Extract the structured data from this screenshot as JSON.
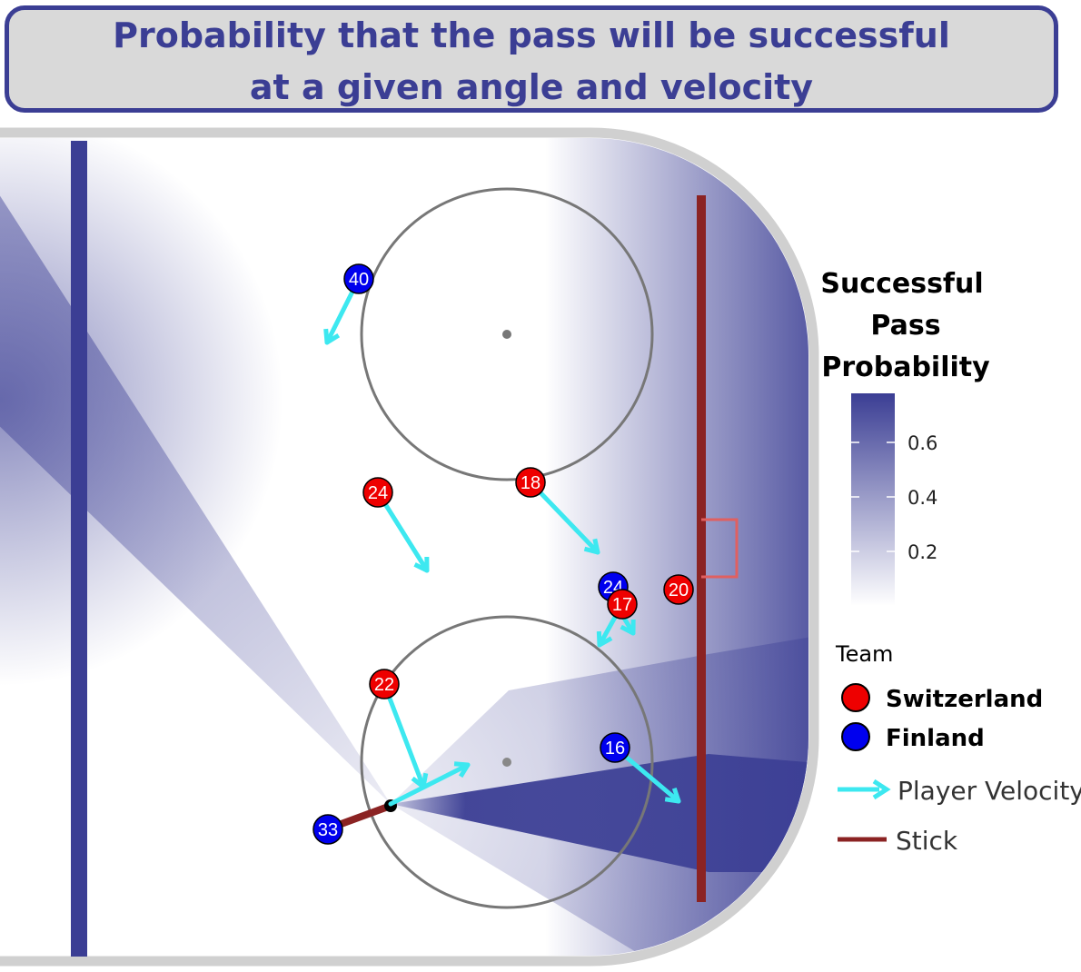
{
  "title": {
    "line1": "Probability that the pass will be successful",
    "line2": "at a given angle and velocity"
  },
  "colors": {
    "accent": "#3b3e94",
    "switzerland": "#ee0000",
    "finland": "#0000ee",
    "velocity": "#3de8f0",
    "stick": "#8b2323",
    "probability_high": "#3b3e94",
    "probability_low": "#ffffff"
  },
  "chart_data": {
    "type": "heatmap",
    "description_of_fill": "pass success probability field over hockey rink",
    "legend": {
      "color_title_lines": [
        "Successful",
        "Pass",
        "Probability"
      ],
      "color_ticks": [
        0.2,
        0.4,
        0.6
      ],
      "color_range": [
        0.0,
        0.78
      ],
      "team_title": "Team",
      "teams": [
        {
          "name": "Switzerland",
          "color": "#ee0000"
        },
        {
          "name": "Finland",
          "color": "#0000ee"
        }
      ],
      "velocity_label": "Player Velocity",
      "stick_label": "Stick"
    },
    "players": [
      {
        "team": "Finland",
        "number": "40"
      },
      {
        "team": "Switzerland",
        "number": "24"
      },
      {
        "team": "Switzerland",
        "number": "18"
      },
      {
        "team": "Finland",
        "number": "24"
      },
      {
        "team": "Switzerland",
        "number": "17"
      },
      {
        "team": "Switzerland",
        "number": "20"
      },
      {
        "team": "Switzerland",
        "number": "22"
      },
      {
        "team": "Finland",
        "number": "16"
      },
      {
        "team": "Finland",
        "number": "33"
      }
    ]
  }
}
